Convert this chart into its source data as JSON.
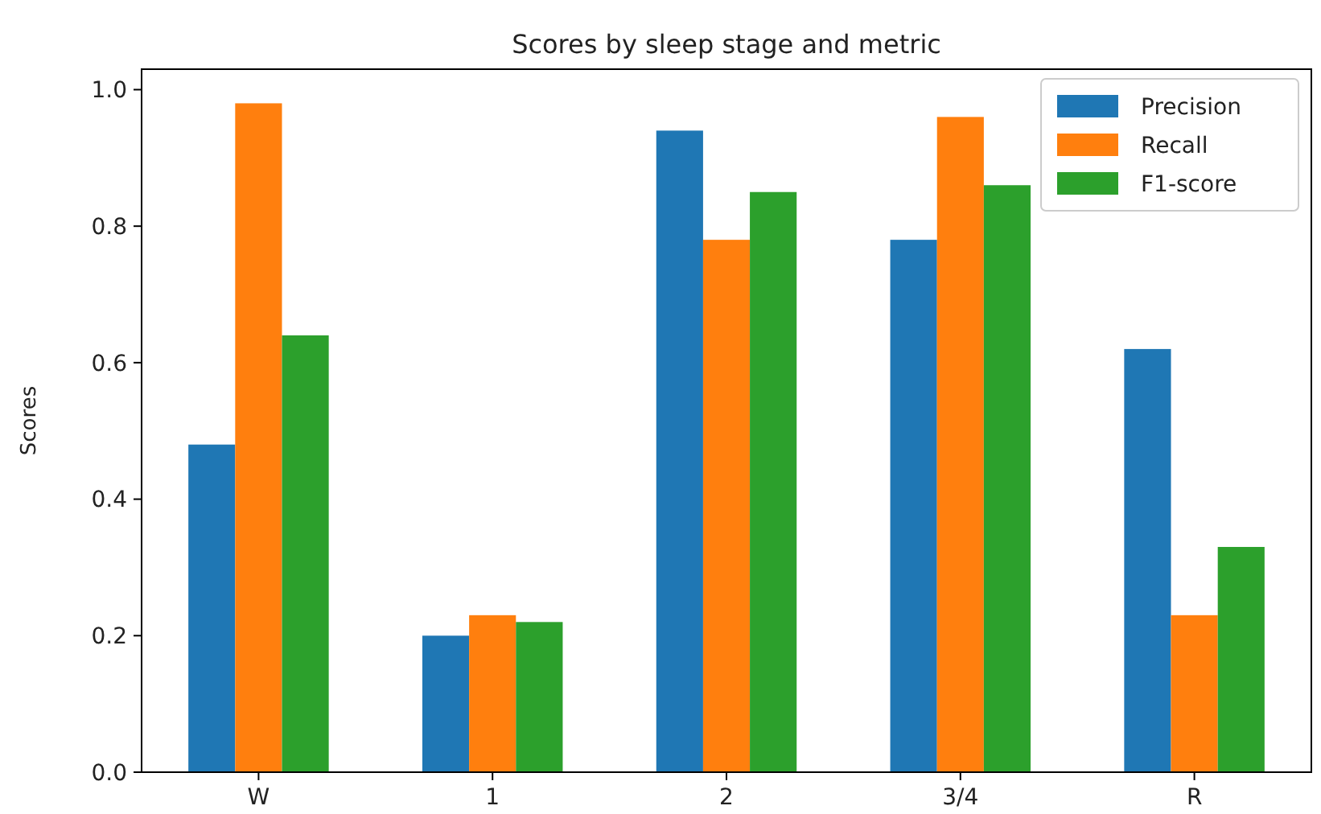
{
  "chart_data": {
    "type": "bar",
    "title": "Scores by sleep stage and metric",
    "ylabel": "Scores",
    "categories": [
      "W",
      "1",
      "2",
      "3/4",
      "R"
    ],
    "series": [
      {
        "name": "Precision",
        "color": "#1f77b4",
        "values": [
          0.48,
          0.2,
          0.94,
          0.78,
          0.62
        ]
      },
      {
        "name": "Recall",
        "color": "#ff7f0e",
        "values": [
          0.98,
          0.23,
          0.78,
          0.96,
          0.23
        ]
      },
      {
        "name": "F1-score",
        "color": "#2ca02c",
        "values": [
          0.64,
          0.22,
          0.85,
          0.86,
          0.33
        ]
      }
    ],
    "ylim": [
      0,
      1.03
    ],
    "yticks": [
      {
        "value": 0,
        "label": "0.0"
      },
      {
        "value": 0.2,
        "label": "0.2"
      },
      {
        "value": 0.4,
        "label": "0.4"
      },
      {
        "value": 0.6,
        "label": "0.6"
      },
      {
        "value": 0.8,
        "label": "0.8"
      },
      {
        "value": 1,
        "label": "1.0"
      }
    ],
    "grid": false,
    "legend": "top right"
  }
}
